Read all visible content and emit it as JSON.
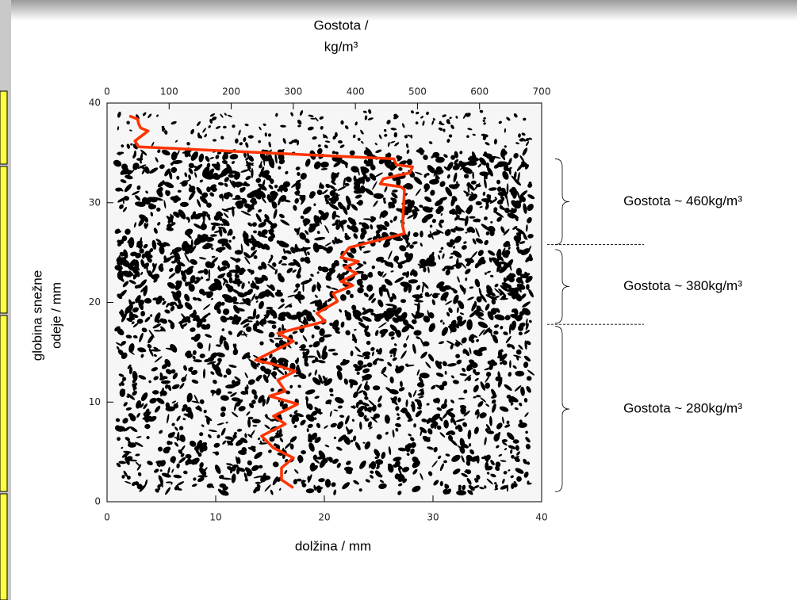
{
  "chart_data": {
    "type": "line",
    "x2_label_lines": [
      "Gostota /",
      "kg/m³"
    ],
    "xlabel": "dolžina / mm",
    "ylabel_lines": [
      "globina snežne",
      "odeje / mm"
    ],
    "xlim": [
      0,
      40
    ],
    "xticks": [
      0,
      10,
      20,
      30,
      40
    ],
    "x2lim": [
      0,
      700
    ],
    "x2ticks": [
      0,
      100,
      200,
      300,
      400,
      500,
      600,
      700
    ],
    "ylim": [
      0,
      40
    ],
    "yticks": [
      0,
      10,
      20,
      30,
      40
    ],
    "series": [
      {
        "color": "#ff3300",
        "axis": "x2",
        "x": [
          36,
          49,
          51,
          54,
          66,
          45,
          51,
          462,
          466,
          492,
          488,
          445,
          440,
          473,
          479,
          476,
          479,
          453,
          390,
          377,
          405,
          383,
          402,
          377,
          396,
          364,
          371,
          338,
          351,
          275,
          300,
          239,
          268,
          303,
          275,
          287,
          262,
          307,
          268,
          287,
          249,
          268,
          300,
          281,
          281,
          300
        ],
        "values": [
          38.7,
          38.4,
          37.9,
          37.5,
          37.2,
          36.2,
          35.6,
          34.4,
          33.8,
          33.6,
          33.0,
          32.4,
          31.9,
          31.6,
          31.3,
          27.7,
          26.9,
          26.5,
          25.5,
          24.5,
          24.1,
          23.5,
          22.9,
          22.1,
          21.7,
          20.9,
          20.1,
          18.9,
          18.1,
          16.9,
          16.1,
          14.2,
          13.8,
          13.1,
          12.2,
          11.1,
          10.6,
          9.8,
          8.6,
          7.8,
          6.6,
          5.4,
          4.4,
          3.4,
          2.2,
          1.4
        ]
      }
    ],
    "layers": [
      {
        "label": "Gostota ~ 460kg/m³",
        "from": 34.4,
        "to": 25.8
      },
      {
        "label": "Gostota ~ 380kg/m³",
        "from": 25.3,
        "to": 17.9
      },
      {
        "label": "Gostota ~ 280kg/m³",
        "from": 17.6,
        "to": 1.0
      }
    ],
    "boundaries": [
      25.8,
      17.8
    ]
  }
}
